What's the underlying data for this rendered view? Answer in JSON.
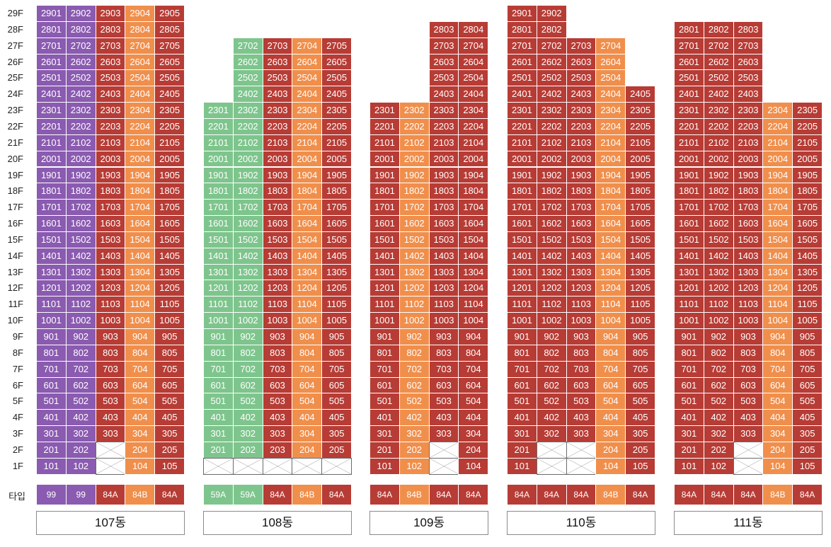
{
  "colors": {
    "purple": "#8a5bb0",
    "green": "#7ec58d",
    "orange": "#f08f4c",
    "red": "#b73c35"
  },
  "floor_labels": [
    "29F",
    "28F",
    "27F",
    "26F",
    "25F",
    "24F",
    "23F",
    "22F",
    "21F",
    "20F",
    "19F",
    "18F",
    "17F",
    "16F",
    "15F",
    "14F",
    "13F",
    "12F",
    "11F",
    "10F",
    "9F",
    "8F",
    "7F",
    "6F",
    "5F",
    "4F",
    "3F",
    "2F",
    "1F"
  ],
  "type_row_label": "타입",
  "buildings": [
    {
      "name": "107동",
      "columns": [
        {
          "line": "01",
          "type": "99",
          "color": "purple",
          "top": 29,
          "bottom": 1,
          "empty": []
        },
        {
          "line": "02",
          "type": "99",
          "color": "purple",
          "top": 29,
          "bottom": 1,
          "empty": []
        },
        {
          "line": "03",
          "type": "84A",
          "color": "red",
          "top": 29,
          "bottom": 3,
          "empty": [
            1,
            2
          ]
        },
        {
          "line": "04",
          "type": "84B",
          "color": "orange",
          "top": 29,
          "bottom": 1,
          "empty": []
        },
        {
          "line": "05",
          "type": "84A",
          "color": "red",
          "top": 29,
          "bottom": 1,
          "empty": []
        }
      ]
    },
    {
      "name": "108동",
      "columns": [
        {
          "line": "01",
          "type": "59A",
          "color": "green",
          "top": 23,
          "bottom": 2,
          "empty": [
            1
          ]
        },
        {
          "line": "02",
          "type": "59A",
          "color": "green",
          "top": 27,
          "bottom": 2,
          "empty": [
            1
          ]
        },
        {
          "line": "03",
          "type": "84A",
          "color": "red",
          "top": 27,
          "bottom": 2,
          "empty": [
            1
          ]
        },
        {
          "line": "04",
          "type": "84B",
          "color": "orange",
          "top": 27,
          "bottom": 2,
          "empty": [
            1
          ]
        },
        {
          "line": "05",
          "type": "84A",
          "color": "red",
          "top": 27,
          "bottom": 2,
          "empty": [
            1
          ]
        }
      ]
    },
    {
      "name": "109동",
      "columns": [
        {
          "line": "01",
          "type": "84A",
          "color": "red",
          "top": 23,
          "bottom": 1,
          "empty": []
        },
        {
          "line": "02",
          "type": "84B",
          "color": "orange",
          "top": 23,
          "bottom": 1,
          "empty": []
        },
        {
          "line": "03",
          "type": "84A",
          "color": "red",
          "top": 28,
          "bottom": 3,
          "empty": [
            1,
            2
          ]
        },
        {
          "line": "04",
          "type": "84A",
          "color": "red",
          "top": 28,
          "bottom": 1,
          "empty": []
        }
      ]
    },
    {
      "name": "110동",
      "columns": [
        {
          "line": "01",
          "type": "84A",
          "color": "red",
          "top": 29,
          "bottom": 1,
          "empty": []
        },
        {
          "line": "02",
          "type": "84A",
          "color": "red",
          "top": 29,
          "bottom": 3,
          "empty": [
            1,
            2
          ]
        },
        {
          "line": "03",
          "type": "84A",
          "color": "red",
          "top": 27,
          "bottom": 3,
          "empty": [
            1,
            2
          ]
        },
        {
          "line": "04",
          "type": "84B",
          "color": "orange",
          "top": 27,
          "bottom": 1,
          "empty": []
        },
        {
          "line": "05",
          "type": "84A",
          "color": "red",
          "top": 24,
          "bottom": 1,
          "empty": []
        }
      ]
    },
    {
      "name": "111동",
      "columns": [
        {
          "line": "01",
          "type": "84A",
          "color": "red",
          "top": 28,
          "bottom": 1,
          "empty": []
        },
        {
          "line": "02",
          "type": "84A",
          "color": "red",
          "top": 28,
          "bottom": 1,
          "empty": []
        },
        {
          "line": "03",
          "type": "84A",
          "color": "red",
          "top": 28,
          "bottom": 3,
          "empty": [
            1,
            2
          ]
        },
        {
          "line": "04",
          "type": "84B",
          "color": "orange",
          "top": 23,
          "bottom": 1,
          "empty": []
        },
        {
          "line": "05",
          "type": "84A",
          "color": "red",
          "top": 23,
          "bottom": 1,
          "empty": []
        }
      ]
    }
  ]
}
